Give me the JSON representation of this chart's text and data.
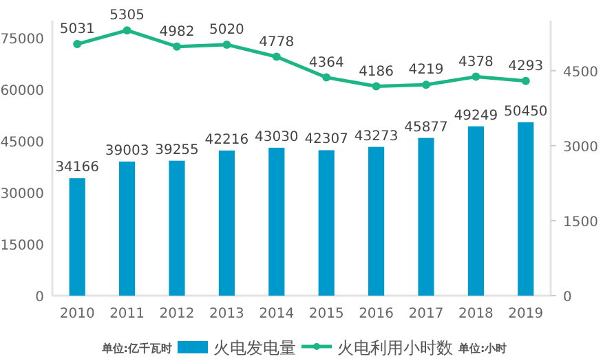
{
  "chart_data": {
    "type": "bar",
    "categories": [
      "2010",
      "2011",
      "2012",
      "2013",
      "2014",
      "2015",
      "2016",
      "2017",
      "2018",
      "2019"
    ],
    "series": [
      {
        "name": "火电发电量",
        "color": "#0099cc",
        "values": [
          34166,
          39003,
          39255,
          42216,
          43030,
          42307,
          43273,
          45877,
          49249,
          50450
        ]
      },
      {
        "name": "火电利用小时数",
        "type": "line",
        "axis": "y2",
        "color": "#1db585",
        "values": [
          5031,
          5305,
          4982,
          5020,
          4778,
          4364,
          4186,
          4219,
          4378,
          4293
        ]
      }
    ],
    "ylim": [
      0,
      80000
    ],
    "yticks": [
      0,
      15000,
      30000,
      45000,
      60000,
      75000
    ],
    "y2lim": [
      0,
      5500
    ],
    "y2ticks": [
      0,
      1500,
      3000,
      4500
    ],
    "data_labels": true,
    "legend": "bottom",
    "marker": "circle",
    "grid": false,
    "annotations": [
      "单位:亿千瓦时",
      "单位:小时"
    ]
  }
}
